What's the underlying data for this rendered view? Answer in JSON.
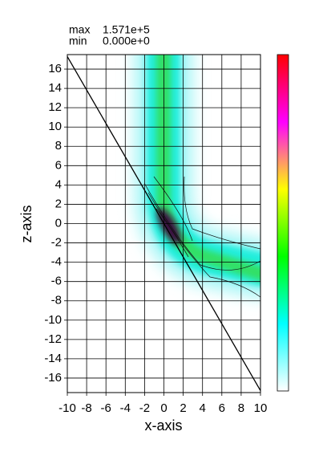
{
  "chart_data": {
    "type": "heatmap",
    "max_label": "max",
    "max": {
      "value": 157100,
      "label": "1.571e+5"
    },
    "min_label": "min",
    "min": {
      "value": 0,
      "label": "0.000e+0"
    },
    "x_label": "x-axis",
    "y_label": "z-axis",
    "xlim": [
      -10,
      10
    ],
    "ylim": [
      -17.5,
      17.5
    ],
    "xticks": [
      -10,
      -8,
      -6,
      -4,
      -2,
      0,
      2,
      4,
      6,
      8,
      10
    ],
    "yticks": [
      -16,
      -14,
      -12,
      -10,
      -8,
      -6,
      -4,
      -2,
      0,
      2,
      4,
      6,
      8,
      10,
      12,
      14,
      16
    ],
    "grid": true,
    "line": {
      "x": [
        -10,
        10
      ],
      "y": [
        17.3,
        -17.3
      ],
      "color": "#000000"
    },
    "colorbar_colors": [
      "#ffffff",
      "#00ffff",
      "#00ff00",
      "#ffff00",
      "#ff00ff",
      "#ff0000"
    ]
  }
}
